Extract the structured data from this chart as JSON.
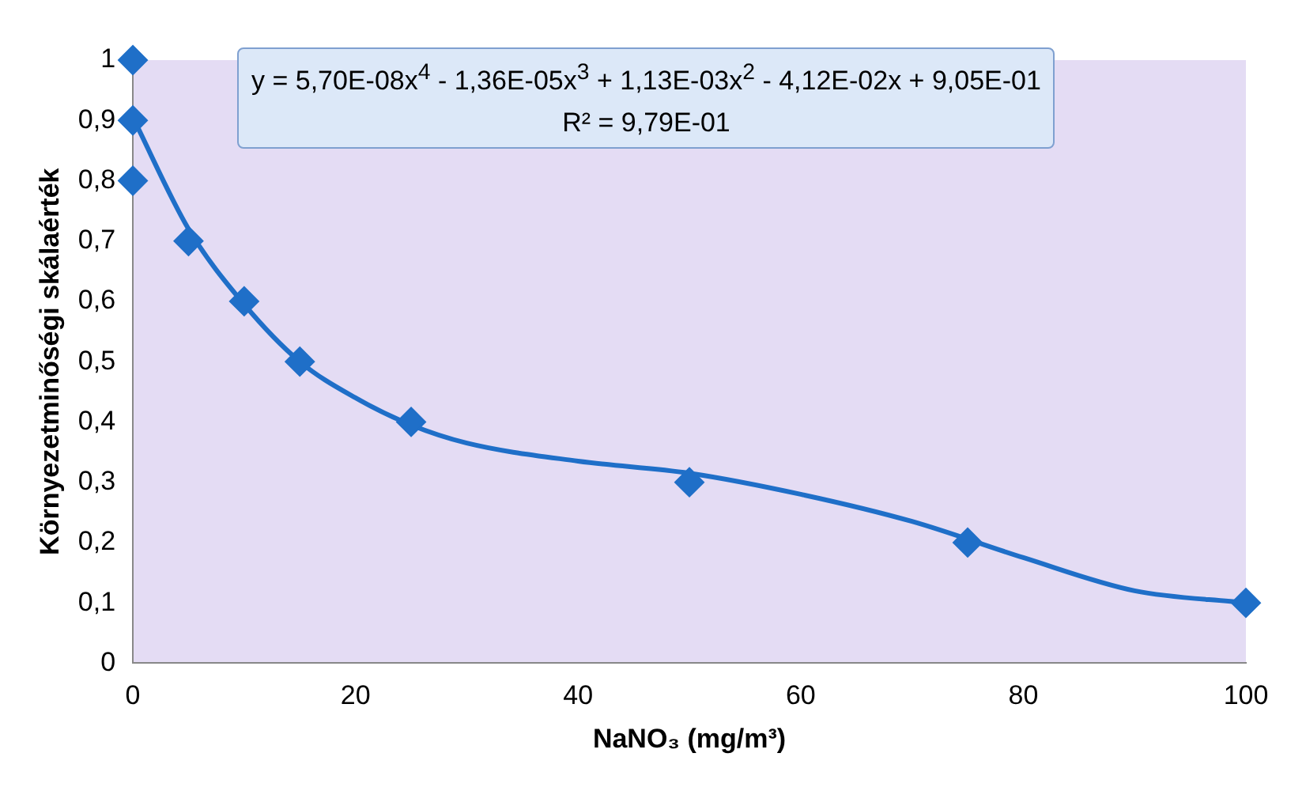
{
  "chart_data": {
    "type": "scatter",
    "xlabel": "NaNO₃ (mg/m³)",
    "ylabel": "Környezetminőségi skálaérték",
    "annotations": [
      "y = 5,70E-08x$^{4}$ - 1,36E-05x$^{3}$ + 1,13E-03x$^{2}$ - 4,12E-02x + 9,05E-01\nR² = 9,79E-01"
    ],
    "series": [
      {
        "color": "#1f6fc8",
        "marker": "diamond",
        "x": [
          0,
          0,
          0,
          5,
          10,
          15,
          25,
          50,
          75,
          100
        ],
        "values": [
          1,
          0.9,
          0.8,
          0.7,
          0.6,
          0.5,
          0.4,
          0.3,
          0.2,
          0.1
        ]
      },
      {
        "type": "line",
        "color": "#1f6fc8",
        "marker": "none",
        "line_style": "solid",
        "x": [
          0,
          5,
          10,
          15,
          20,
          25,
          30,
          40,
          50,
          60,
          70,
          80,
          90,
          100
        ],
        "values": [
          0.905,
          0.72,
          0.595,
          0.5,
          0.44,
          0.395,
          0.365,
          0.335,
          0.315,
          0.28,
          0.235,
          0.175,
          0.12,
          0.1
        ]
      }
    ],
    "xlim": [
      0,
      100
    ],
    "xticks": [
      0,
      20,
      40,
      60,
      80,
      100
    ],
    "ylim": [
      0,
      1
    ],
    "yticks": [
      0,
      {
        "value": 0.1,
        "label": "0,1"
      },
      {
        "value": 0.2,
        "label": "0,2"
      },
      {
        "value": 0.3,
        "label": "0,3"
      },
      {
        "value": 0.4,
        "label": "0,4"
      },
      {
        "value": 0.5,
        "label": "0,5"
      },
      {
        "value": 0.6,
        "label": "0,6"
      },
      {
        "value": 0.7,
        "label": "0,7"
      },
      {
        "value": 0.8,
        "label": "0,8"
      },
      {
        "value": 0.9,
        "label": "0,9"
      },
      1
    ],
    "grid": false,
    "legend": false
  }
}
